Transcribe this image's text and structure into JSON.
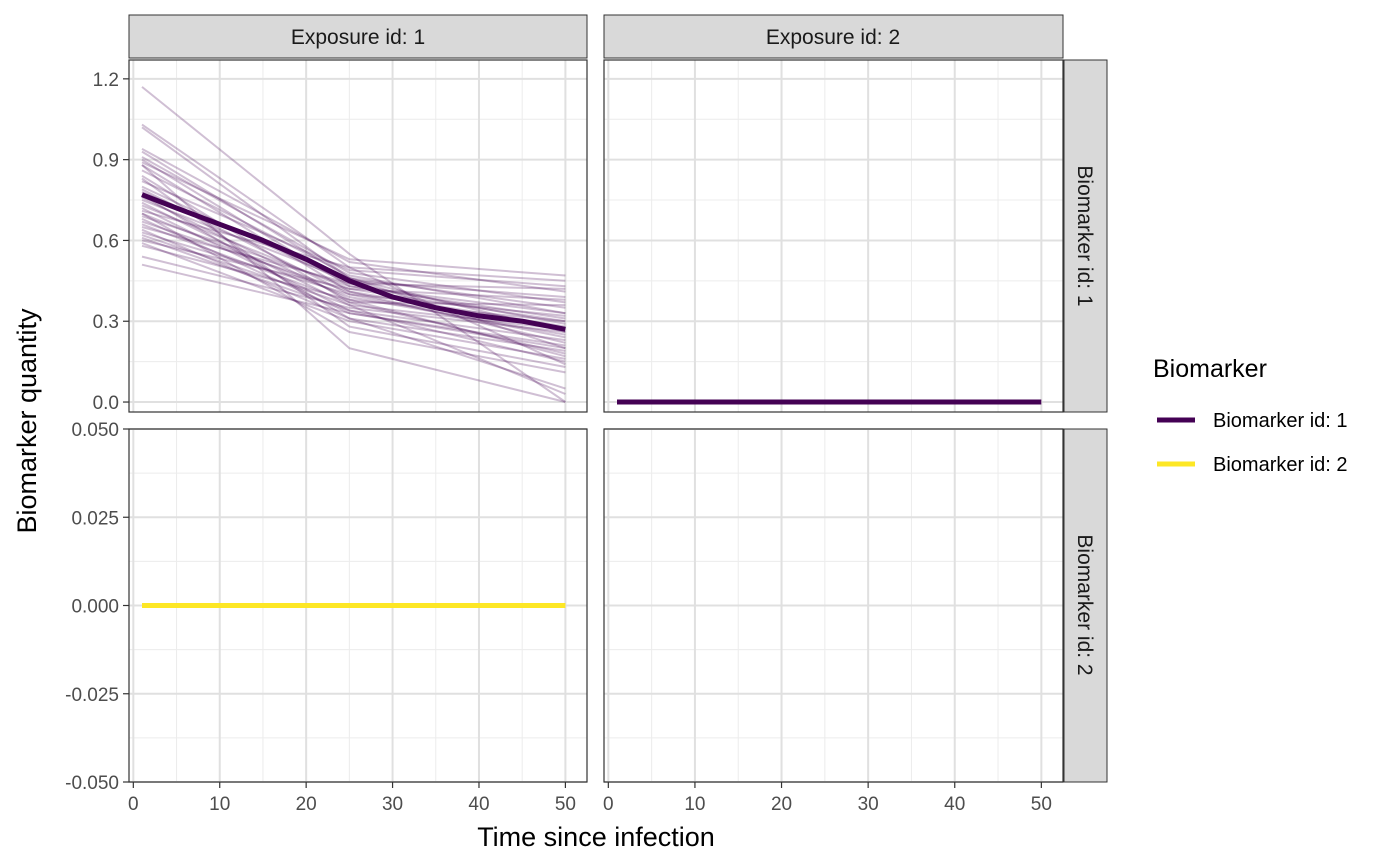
{
  "chart_data": {
    "type": "line",
    "facets": {
      "columns": [
        "Exposure id: 1",
        "Exposure id: 2"
      ],
      "rows": [
        "Biomarker id: 1",
        "Biomarker id: 2"
      ]
    },
    "xlabel": "Time since infection",
    "ylabel": "Biomarker quantity",
    "x_axis": {
      "range": [
        -0.5,
        52.5
      ],
      "ticks": [
        0,
        10,
        20,
        30,
        40,
        50
      ]
    },
    "y_axes": [
      {
        "row": "Biomarker id: 1",
        "range": [
          -0.037,
          1.27
        ],
        "ticks": [
          0.0,
          0.3,
          0.6,
          0.9,
          1.2
        ],
        "tick_labels": [
          "0.0",
          "0.3",
          "0.6",
          "0.9",
          "1.2"
        ]
      },
      {
        "row": "Biomarker id: 2",
        "range": [
          -0.05,
          0.05
        ],
        "ticks": [
          -0.05,
          -0.025,
          0.0,
          0.025,
          0.05
        ],
        "tick_labels": [
          "-0.050",
          "-0.025",
          "0.000",
          "0.025",
          "0.050"
        ]
      }
    ],
    "grid": true,
    "legend": {
      "title": "Biomarker",
      "position": "right",
      "entries": [
        {
          "label": "Biomarker id: 1",
          "color": "#440154"
        },
        {
          "label": "Biomarker id: 2",
          "color": "#FDE725"
        }
      ]
    },
    "series": [
      {
        "name": "Biomarker id: 1 mean (Exposure id: 1)",
        "panel": [
          0,
          0
        ],
        "color": "#440154",
        "style": "thick",
        "x": [
          1,
          5,
          10,
          15,
          20,
          25,
          30,
          35,
          40,
          45,
          50
        ],
        "y": [
          0.77,
          0.72,
          0.66,
          0.6,
          0.53,
          0.45,
          0.39,
          0.35,
          0.32,
          0.3,
          0.27
        ]
      },
      {
        "name": "Biomarker id: 1 mean (Exposure id: 2)",
        "panel": [
          0,
          1
        ],
        "color": "#440154",
        "style": "thick",
        "x": [
          1,
          50
        ],
        "y": [
          0.0,
          0.0
        ]
      },
      {
        "name": "Biomarker id: 2 mean (Exposure id: 1)",
        "panel": [
          1,
          0
        ],
        "color": "#FDE725",
        "style": "thick",
        "x": [
          1,
          50
        ],
        "y": [
          0.0,
          0.0
        ]
      }
    ],
    "individual_trajectories": {
      "panel": [
        0,
        0
      ],
      "color": "#440154",
      "opacity": 0.25,
      "x": [
        1,
        25,
        50
      ],
      "lines": [
        [
          1.17,
          0.55,
          0.0
        ],
        [
          1.03,
          0.5,
          0.14
        ],
        [
          1.02,
          0.46,
          0.2
        ],
        [
          0.94,
          0.52,
          0.41
        ],
        [
          0.93,
          0.46,
          0.26
        ],
        [
          0.91,
          0.48,
          0.37
        ],
        [
          0.9,
          0.43,
          0.31
        ],
        [
          0.89,
          0.53,
          0.47
        ],
        [
          0.88,
          0.41,
          0.22
        ],
        [
          0.86,
          0.47,
          0.33
        ],
        [
          0.84,
          0.37,
          0.18
        ],
        [
          0.82,
          0.49,
          0.43
        ],
        [
          0.8,
          0.44,
          0.29
        ],
        [
          0.79,
          0.4,
          0.24
        ],
        [
          0.78,
          0.46,
          0.35
        ],
        [
          0.76,
          0.38,
          0.17
        ],
        [
          0.75,
          0.45,
          0.39
        ],
        [
          0.74,
          0.36,
          0.03
        ],
        [
          0.73,
          0.42,
          0.3
        ],
        [
          0.72,
          0.34,
          0.15
        ],
        [
          0.71,
          0.5,
          0.45
        ],
        [
          0.7,
          0.39,
          0.25
        ],
        [
          0.69,
          0.43,
          0.33
        ],
        [
          0.68,
          0.33,
          0.2
        ],
        [
          0.67,
          0.41,
          0.28
        ],
        [
          0.66,
          0.37,
          0.36
        ],
        [
          0.65,
          0.44,
          0.42
        ],
        [
          0.64,
          0.31,
          0.19
        ],
        [
          0.63,
          0.4,
          0.32
        ],
        [
          0.62,
          0.36,
          0.27
        ],
        [
          0.61,
          0.34,
          0.23
        ],
        [
          0.6,
          0.42,
          0.38
        ],
        [
          0.59,
          0.3,
          0.16
        ],
        [
          0.58,
          0.38,
          0.3
        ],
        [
          0.54,
          0.35,
          0.26
        ],
        [
          0.51,
          0.33,
          0.21
        ],
        [
          0.88,
          0.2,
          0.0
        ],
        [
          0.83,
          0.28,
          0.13
        ],
        [
          0.77,
          0.31,
          0.05
        ],
        [
          0.7,
          0.26,
          0.11
        ]
      ]
    }
  }
}
